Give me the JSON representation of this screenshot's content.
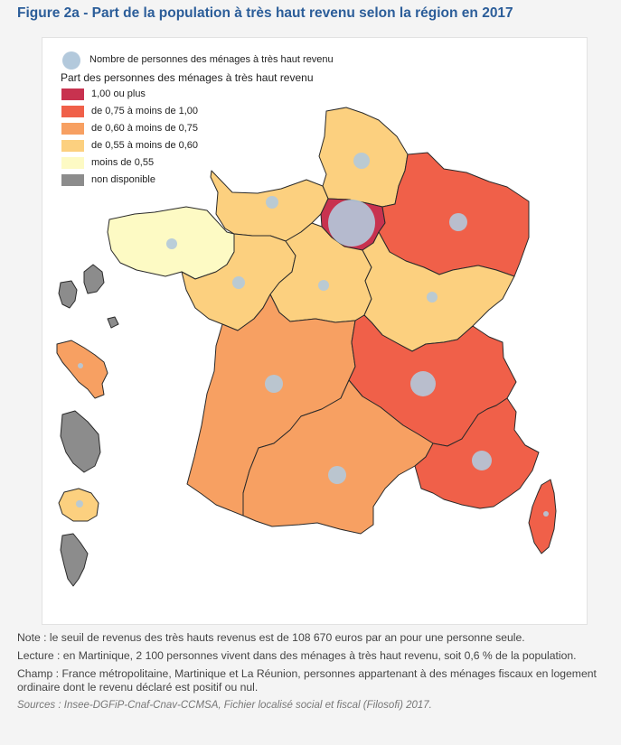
{
  "title": "Figure 2a - Part de la population à très haut revenu selon la région en 2017",
  "legend": {
    "circle_label": "Nombre de personnes des ménages à très haut revenu",
    "scale_title": "Part des personnes des ménages à très haut revenu",
    "classes": [
      {
        "label": "1,00 ou plus",
        "color": "#c8324f"
      },
      {
        "label": "de 0,75 à moins de 1,00",
        "color": "#f06049"
      },
      {
        "label": "de 0,60 à moins de 0,75",
        "color": "#f7a062"
      },
      {
        "label": "de 0,55 à moins de 0,60",
        "color": "#fcd07f"
      },
      {
        "label": "moins de 0,55",
        "color": "#fdfac4"
      },
      {
        "label": "non disponible",
        "color": "#8c8c8c"
      }
    ]
  },
  "colors": {
    "title": "#2b5d99",
    "circle": "#b3c9dc",
    "border": "#2a2a2a"
  },
  "regions": [
    {
      "id": "ile-de-france",
      "class": 0
    },
    {
      "id": "grand-est",
      "class": 1
    },
    {
      "id": "auvergne-rhone-alpes",
      "class": 1
    },
    {
      "id": "provence-alpes-cote-dazur",
      "class": 1
    },
    {
      "id": "corse",
      "class": 1
    },
    {
      "id": "nouvelle-aquitaine",
      "class": 2
    },
    {
      "id": "occitanie",
      "class": 2
    },
    {
      "id": "martinique",
      "class": 2
    },
    {
      "id": "hauts-de-france",
      "class": 3
    },
    {
      "id": "normandie",
      "class": 3
    },
    {
      "id": "pays-de-la-loire",
      "class": 3
    },
    {
      "id": "centre-val-de-loire",
      "class": 3
    },
    {
      "id": "bourgogne-franche-comte",
      "class": 3
    },
    {
      "id": "la-reunion",
      "class": 3
    },
    {
      "id": "bretagne",
      "class": 4
    },
    {
      "id": "guadeloupe",
      "class": 5
    },
    {
      "id": "guyane",
      "class": 5
    },
    {
      "id": "mayotte",
      "class": 5
    }
  ],
  "notes": {
    "note": "Note : le seuil de revenus des très hauts revenus est de 108 670 euros par an pour une personne seule.",
    "lecture": "Lecture : en Martinique, 2 100 personnes vivent dans des ménages à très haut revenu, soit 0,6 % de la population.",
    "champ": "Champ : France métropolitaine, Martinique et La Réunion, personnes appartenant à des ménages fiscaux en logement ordinaire dont le revenu déclaré est positif ou nul.",
    "sources": "Sources : Insee-DGFiP-Cnaf-Cnav-CCMSA, Fichier localisé social et fiscal (Filosofi) 2017."
  }
}
